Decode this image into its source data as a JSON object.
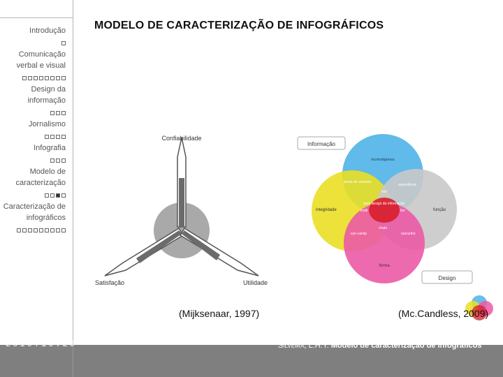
{
  "slide_title": "MODELO DE CARACTERIZAÇÃO DE INFOGRÁFICOS",
  "nav": [
    {
      "label": "Introdução",
      "dots": [
        0
      ]
    },
    {
      "label": "Comunicação verbal e visual",
      "dots": [
        0,
        0,
        0,
        0,
        0,
        0,
        0,
        0
      ]
    },
    {
      "label": "Design da informação",
      "dots": [
        0,
        0,
        0
      ]
    },
    {
      "label": "Jornalismo",
      "dots": [
        0,
        0,
        0,
        0
      ]
    },
    {
      "label": "Infografia",
      "dots": [
        0,
        0,
        0
      ]
    },
    {
      "label": "Modelo de caracterização",
      "dots": [
        0,
        0,
        1,
        0
      ]
    },
    {
      "label": "Caracterização de infográficos",
      "dots": [
        0,
        0,
        0,
        0,
        0,
        0,
        0,
        0,
        0
      ]
    }
  ],
  "triangle_model": {
    "labels": {
      "top": "Confiabilidade",
      "left": "Satisfação",
      "right": "Utilidade"
    },
    "caption": "(Mijksenaar, 1997)"
  },
  "venn_model": {
    "header_label": "Informação",
    "footer_label": "Design",
    "circles": {
      "top": {
        "label": "incrinstigness",
        "color": "#4fb3e8"
      },
      "left": {
        "label": "integridade",
        "color": "#eadf24"
      },
      "right": {
        "label": "função",
        "color": "#c9c9c9"
      },
      "bottom": {
        "label": "forma",
        "color": "#ec5aa6"
      }
    },
    "regions": {
      "prova": "prova de conceito",
      "experiencia": "experiência",
      "feio": "feio",
      "bom": "bom design da informação",
      "inutil": "inútil",
      "leo": "léo",
      "chato": "chato",
      "eye_candy": "eye-candy",
      "rascunho": "rascunho"
    },
    "caption": "(Mc.Candless, 2009)"
  },
  "footer": {
    "date": "2010.10.29",
    "author": "Silveira, L.H.Y.",
    "work": "Modelo de caracterização de infográficos"
  },
  "colors": {
    "footer_bg": "#7f7f7f",
    "nav_border": "#b5b5b5"
  }
}
